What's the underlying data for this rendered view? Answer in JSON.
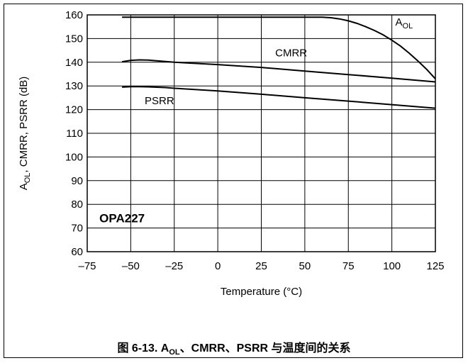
{
  "chart_data": {
    "type": "line",
    "xlabel": "Temperature (°C)",
    "ylabel": "A_OL, CMRR, PSRR (dB)",
    "xlim": [
      -75,
      125
    ],
    "ylim": [
      60,
      160
    ],
    "xticks": [
      -75,
      -50,
      -25,
      0,
      25,
      50,
      75,
      100,
      125
    ],
    "yticks": [
      60,
      70,
      80,
      90,
      100,
      110,
      120,
      130,
      140,
      150,
      160
    ],
    "x_tick_labels": [
      "–75",
      "–50",
      "–25",
      "0",
      "25",
      "50",
      "75",
      "100",
      "125"
    ],
    "grid": true,
    "annotation": "OPA227",
    "series": [
      {
        "name": "A_OL",
        "x": [
          -55,
          -25,
          0,
          25,
          50,
          60,
          65,
          70,
          75,
          80,
          85,
          90,
          95,
          100,
          105,
          110,
          115,
          120,
          125
        ],
        "y": [
          159,
          159,
          159,
          159,
          159,
          159,
          158.8,
          158.3,
          157.5,
          156.4,
          155,
          153.4,
          151.6,
          149.3,
          146.8,
          143.8,
          140.5,
          137,
          133
        ]
      },
      {
        "name": "CMRR",
        "x": [
          -55,
          -50,
          -45,
          -40,
          -35,
          -30,
          -25,
          0,
          25,
          50,
          75,
          100,
          125
        ],
        "y": [
          140.2,
          140.8,
          141,
          140.9,
          140.6,
          140.3,
          140,
          139,
          137.8,
          136.3,
          134.8,
          133.3,
          131.7
        ]
      },
      {
        "name": "PSRR",
        "x": [
          -55,
          -50,
          -45,
          -40,
          -30,
          -25,
          0,
          25,
          50,
          75,
          100,
          125
        ],
        "y": [
          129.5,
          129.7,
          129.7,
          129.6,
          129.3,
          129,
          127.9,
          126.5,
          125,
          123.6,
          122.1,
          120.6
        ]
      }
    ]
  },
  "labels": {
    "y_axis_parts": [
      "A",
      "OL",
      ", CMRR, PSRR (dB)"
    ],
    "aol_parts": [
      "A",
      "OL"
    ],
    "cmrr": "CMRR",
    "psrr": "PSRR"
  },
  "caption": {
    "prefix": "图 6-13. A",
    "sub": "OL",
    "suffix": "、CMRR、PSRR 与温度间的关系"
  }
}
